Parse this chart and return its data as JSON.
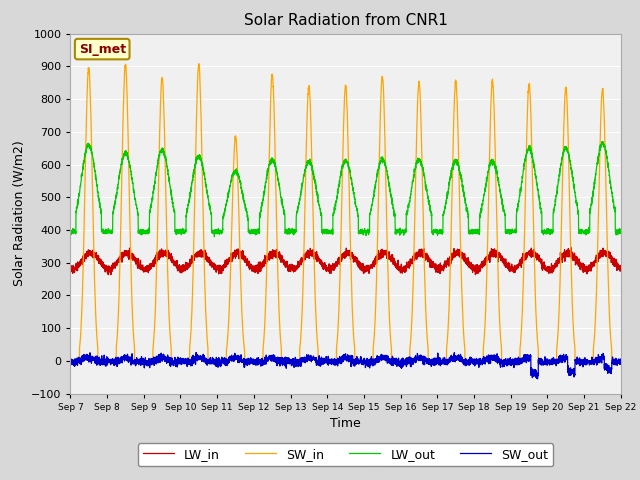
{
  "title": "Solar Radiation from CNR1",
  "xlabel": "Time",
  "ylabel": "Solar Radiation (W/m2)",
  "ylim": [
    -100,
    1000
  ],
  "yticks": [
    -100,
    0,
    100,
    200,
    300,
    400,
    500,
    600,
    700,
    800,
    900,
    1000
  ],
  "annotation_label": "SI_met",
  "fig_bg_color": "#d8d8d8",
  "plot_bg_color": "#f0f0f0",
  "grid_color": "#ffffff",
  "colors": {
    "LW_in": "#cc0000",
    "SW_in": "#ffa500",
    "LW_out": "#00cc00",
    "SW_out": "#0000cc"
  },
  "legend_labels": [
    "LW_in",
    "SW_in",
    "LW_out",
    "SW_out"
  ],
  "n_days": 15,
  "points_per_day": 288,
  "start_day": 7,
  "end_day": 22,
  "sw_in_peaks": [
    895,
    905,
    865,
    905,
    685,
    875,
    840,
    840,
    870,
    850,
    855,
    855,
    845,
    835,
    830
  ],
  "lw_out_peaks": [
    660,
    635,
    645,
    625,
    580,
    615,
    610,
    612,
    617,
    615,
    610,
    610,
    648,
    650,
    665
  ]
}
